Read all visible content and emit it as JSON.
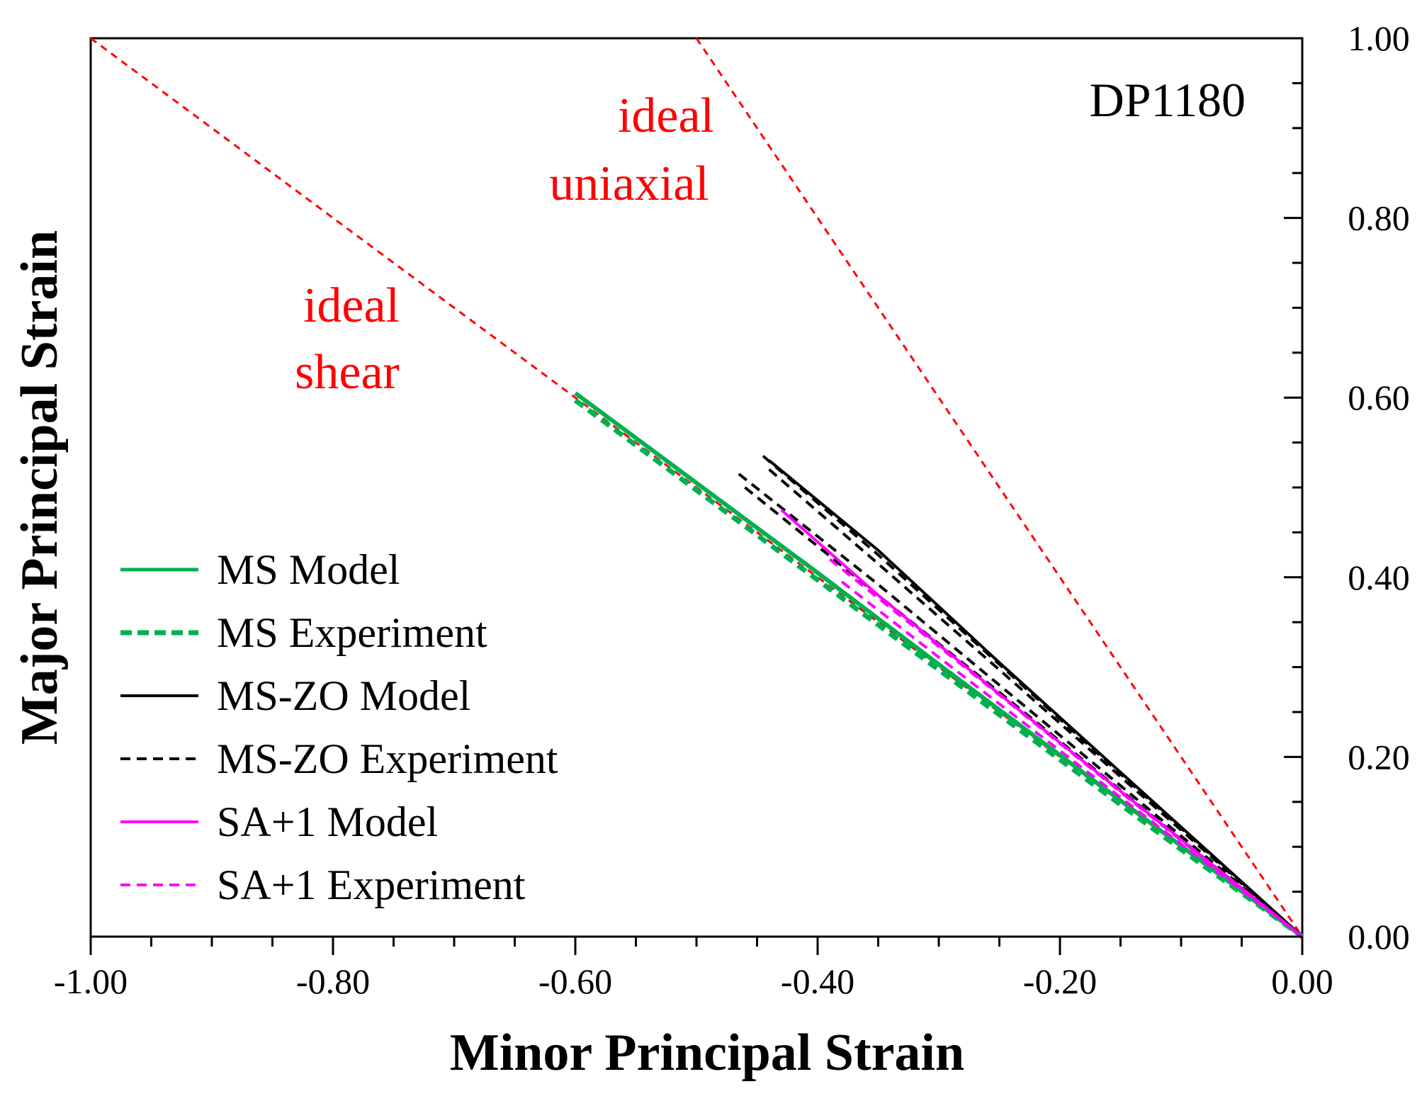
{
  "chart_data": {
    "type": "line",
    "title": "",
    "material_label": "DP1180",
    "xlabel": "Minor Principal Strain",
    "ylabel": "Major Principal Strain",
    "xlim": [
      -1.0,
      0.0
    ],
    "ylim": [
      0.0,
      1.0
    ],
    "x_major_ticks": [
      -1.0,
      -0.8,
      -0.6,
      -0.4,
      -0.2,
      0.0
    ],
    "x_tick_labels": [
      "-1.00",
      "-0.80",
      "-0.60",
      "-0.40",
      "-0.20",
      "0.00"
    ],
    "y_major_ticks": [
      0.0,
      0.2,
      0.4,
      0.6,
      0.8,
      1.0
    ],
    "y_tick_labels": [
      "0.00",
      "0.20",
      "0.40",
      "0.60",
      "0.80",
      "1.00"
    ],
    "y_axis_side": "right",
    "grid": false,
    "legend_position": "lower-left",
    "reference_lines": [
      {
        "name": "ideal shear",
        "x": [
          -1.0,
          0.0
        ],
        "y": [
          1.0,
          0.0
        ],
        "color": "#ff0000",
        "style": "dotted"
      },
      {
        "name": "ideal uniaxial",
        "x": [
          -0.5,
          0.0
        ],
        "y": [
          1.0,
          0.0
        ],
        "color": "#ff0000",
        "style": "dotted"
      }
    ],
    "annotations": [
      {
        "lines": [
          "ideal",
          "uniaxial"
        ],
        "color": "#ff0000"
      },
      {
        "lines": [
          "ideal",
          "shear"
        ],
        "color": "#ff0000"
      }
    ],
    "series": [
      {
        "name": "MS Model",
        "color": "#00b050",
        "style": "solid",
        "x": [
          -0.6,
          -0.5,
          -0.4,
          -0.3,
          -0.2,
          -0.1,
          0.0
        ],
        "y": [
          0.605,
          0.505,
          0.405,
          0.303,
          0.202,
          0.101,
          0.0
        ]
      },
      {
        "name": "MS Experiment",
        "color": "#00b050",
        "style": "dashed",
        "x": [
          -0.6,
          -0.5,
          -0.4,
          -0.3,
          -0.2,
          -0.1,
          0.0
        ],
        "y": [
          0.597,
          0.497,
          0.397,
          0.297,
          0.197,
          0.097,
          0.0
        ]
      },
      {
        "name": "MS-ZO Model",
        "color": "#000000",
        "style": "solid",
        "x": [
          -0.44,
          -0.35,
          -0.25,
          -0.15,
          -0.05,
          0.0
        ],
        "y": [
          0.53,
          0.43,
          0.305,
          0.183,
          0.061,
          0.0
        ]
      },
      {
        "name": "MS-ZO Experiment",
        "color": "#000000",
        "style": "dashed",
        "x": [
          -0.445,
          -0.35,
          -0.25,
          -0.15,
          -0.05,
          0.0
        ],
        "y": [
          0.535,
          0.425,
          0.303,
          0.181,
          0.06,
          0.0
        ]
      },
      {
        "name": "MS-ZO Experiment 2",
        "color": "#000000",
        "style": "dashed",
        "x": [
          -0.44,
          -0.35,
          -0.25,
          -0.15,
          -0.05,
          0.0
        ],
        "y": [
          0.52,
          0.415,
          0.297,
          0.178,
          0.059,
          0.0
        ]
      },
      {
        "name": "MS-ZO Experiment 3",
        "color": "#000000",
        "style": "dashed",
        "x": [
          -0.465,
          -0.35,
          -0.25,
          -0.15,
          -0.05,
          0.0
        ],
        "y": [
          0.515,
          0.392,
          0.28,
          0.168,
          0.056,
          0.0
        ]
      },
      {
        "name": "MS-ZO Experiment 4",
        "color": "#000000",
        "style": "dashed",
        "x": [
          -0.46,
          -0.35,
          -0.25,
          -0.15,
          -0.05,
          0.0
        ],
        "y": [
          0.5,
          0.38,
          0.272,
          0.163,
          0.054,
          0.0
        ]
      },
      {
        "name": "SA+1 Model",
        "color": "#ff00ff",
        "style": "solid",
        "x": [
          -0.43,
          -0.35,
          -0.25,
          -0.15,
          -0.05,
          0.0
        ],
        "y": [
          0.475,
          0.38,
          0.27,
          0.162,
          0.054,
          0.0
        ]
      },
      {
        "name": "SA+1 Experiment",
        "color": "#ff00ff",
        "style": "dashed",
        "x": [
          -0.39,
          -0.3,
          -0.2,
          -0.1,
          0.0
        ],
        "y": [
          0.42,
          0.323,
          0.215,
          0.107,
          0.0
        ]
      },
      {
        "name": "SA+1 Experiment 2",
        "color": "#ff00ff",
        "style": "dashed",
        "x": [
          -0.38,
          -0.3,
          -0.2,
          -0.1,
          0.0
        ],
        "y": [
          0.395,
          0.311,
          0.207,
          0.103,
          0.0
        ]
      }
    ],
    "legend": [
      {
        "label": "MS Model",
        "color": "#00b050",
        "style": "solid"
      },
      {
        "label": "MS Experiment",
        "color": "#00b050",
        "style": "dashed-bold"
      },
      {
        "label": "MS-ZO Model",
        "color": "#000000",
        "style": "solid"
      },
      {
        "label": "MS-ZO Experiment",
        "color": "#000000",
        "style": "dashed"
      },
      {
        "label": "SA+1 Model",
        "color": "#ff00ff",
        "style": "solid"
      },
      {
        "label": "SA+1 Experiment",
        "color": "#ff00ff",
        "style": "dashed"
      }
    ]
  }
}
